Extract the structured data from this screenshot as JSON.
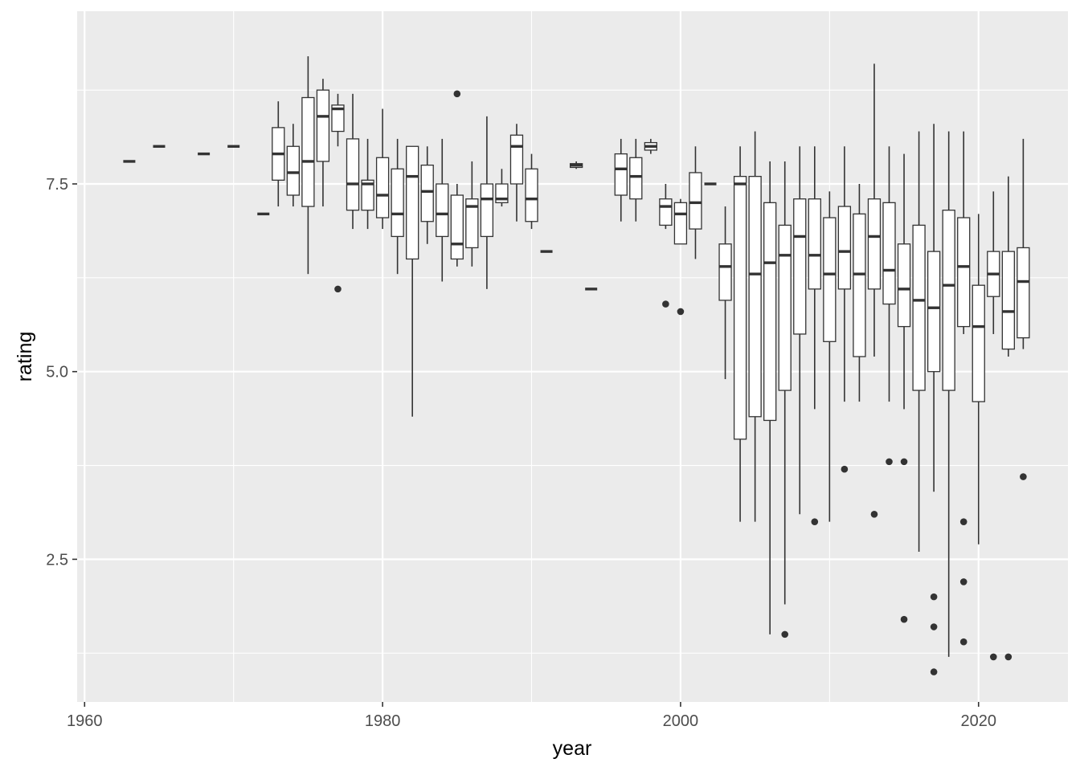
{
  "chart_data": {
    "type": "boxplot",
    "xlabel": "year",
    "ylabel": "rating",
    "xlim": [
      1959.5,
      2026
    ],
    "ylim": [
      0.6,
      9.8
    ],
    "x_ticks": [
      1960,
      1980,
      2000,
      2020
    ],
    "x_tick_labels": [
      "1960",
      "1980",
      "2000",
      "2020"
    ],
    "y_ticks": [
      2.5,
      5.0,
      7.5
    ],
    "y_tick_labels": [
      "2.5",
      "5.0",
      "7.5"
    ],
    "grid": true,
    "background": "#ebebeb",
    "grid_color": "#ffffff",
    "box_fill": "#ffffff",
    "line_color": "#333333",
    "boxes": [
      {
        "year": 1963,
        "min": 7.8,
        "q1": 7.8,
        "median": 7.8,
        "q3": 7.8,
        "max": 7.8
      },
      {
        "year": 1965,
        "min": 8.0,
        "q1": 8.0,
        "median": 8.0,
        "q3": 8.0,
        "max": 8.0
      },
      {
        "year": 1968,
        "min": 7.9,
        "q1": 7.9,
        "median": 7.9,
        "q3": 7.9,
        "max": 7.9
      },
      {
        "year": 1970,
        "min": 8.0,
        "q1": 8.0,
        "median": 8.0,
        "q3": 8.0,
        "max": 8.0
      },
      {
        "year": 1972,
        "min": 7.1,
        "q1": 7.1,
        "median": 7.1,
        "q3": 7.1,
        "max": 7.1
      },
      {
        "year": 1973,
        "min": 7.2,
        "q1": 7.55,
        "median": 7.9,
        "q3": 8.25,
        "max": 8.6
      },
      {
        "year": 1974,
        "min": 7.2,
        "q1": 7.35,
        "median": 7.65,
        "q3": 8.0,
        "max": 8.3
      },
      {
        "year": 1975,
        "min": 6.3,
        "q1": 7.2,
        "median": 7.8,
        "q3": 8.65,
        "max": 9.2
      },
      {
        "year": 1976,
        "min": 7.2,
        "q1": 7.8,
        "median": 8.4,
        "q3": 8.75,
        "max": 8.9
      },
      {
        "year": 1977,
        "min": 8.0,
        "q1": 8.2,
        "median": 8.5,
        "q3": 8.55,
        "max": 8.7,
        "outliers": [
          6.1
        ]
      },
      {
        "year": 1978,
        "min": 6.9,
        "q1": 7.15,
        "median": 7.5,
        "q3": 8.1,
        "max": 8.7
      },
      {
        "year": 1979,
        "min": 6.9,
        "q1": 7.15,
        "median": 7.5,
        "q3": 7.55,
        "max": 8.1
      },
      {
        "year": 1980,
        "min": 6.9,
        "q1": 7.05,
        "median": 7.35,
        "q3": 7.85,
        "max": 8.5
      },
      {
        "year": 1981,
        "min": 6.3,
        "q1": 6.8,
        "median": 7.1,
        "q3": 7.7,
        "max": 8.1
      },
      {
        "year": 1982,
        "min": 4.4,
        "q1": 6.5,
        "median": 7.6,
        "q3": 8.0,
        "max": 8.0
      },
      {
        "year": 1983,
        "min": 6.7,
        "q1": 7.0,
        "median": 7.4,
        "q3": 7.75,
        "max": 8.0
      },
      {
        "year": 1984,
        "min": 6.2,
        "q1": 6.8,
        "median": 7.1,
        "q3": 7.5,
        "max": 8.1
      },
      {
        "year": 1985,
        "min": 6.4,
        "q1": 6.5,
        "median": 6.7,
        "q3": 7.35,
        "max": 7.5,
        "outliers": [
          8.7
        ]
      },
      {
        "year": 1986,
        "min": 6.4,
        "q1": 6.65,
        "median": 7.2,
        "q3": 7.3,
        "max": 7.8
      },
      {
        "year": 1987,
        "min": 6.1,
        "q1": 6.8,
        "median": 7.3,
        "q3": 7.5,
        "max": 8.4
      },
      {
        "year": 1988,
        "min": 7.2,
        "q1": 7.25,
        "median": 7.3,
        "q3": 7.5,
        "max": 7.7
      },
      {
        "year": 1989,
        "min": 7.0,
        "q1": 7.5,
        "median": 8.0,
        "q3": 8.15,
        "max": 8.3
      },
      {
        "year": 1990,
        "min": 6.9,
        "q1": 7.0,
        "median": 7.3,
        "q3": 7.7,
        "max": 7.9
      },
      {
        "year": 1991,
        "min": 6.6,
        "q1": 6.6,
        "median": 6.6,
        "q3": 6.6,
        "max": 6.6
      },
      {
        "year": 1993,
        "min": 7.7,
        "q1": 7.72,
        "median": 7.75,
        "q3": 7.77,
        "max": 7.8
      },
      {
        "year": 1994,
        "min": 6.1,
        "q1": 6.1,
        "median": 6.1,
        "q3": 6.1,
        "max": 6.1
      },
      {
        "year": 1996,
        "min": 7.0,
        "q1": 7.35,
        "median": 7.7,
        "q3": 7.9,
        "max": 8.1
      },
      {
        "year": 1997,
        "min": 7.0,
        "q1": 7.3,
        "median": 7.6,
        "q3": 7.85,
        "max": 8.1
      },
      {
        "year": 1998,
        "min": 7.9,
        "q1": 7.95,
        "median": 8.0,
        "q3": 8.05,
        "max": 8.1
      },
      {
        "year": 1999,
        "min": 6.9,
        "q1": 6.95,
        "median": 7.2,
        "q3": 7.3,
        "max": 7.5,
        "outliers": [
          5.9
        ]
      },
      {
        "year": 2000,
        "min": 6.7,
        "q1": 6.7,
        "median": 7.1,
        "q3": 7.25,
        "max": 7.3,
        "outliers": [
          5.8
        ]
      },
      {
        "year": 2001,
        "min": 6.5,
        "q1": 6.9,
        "median": 7.25,
        "q3": 7.65,
        "max": 8.0
      },
      {
        "year": 2002,
        "min": 7.5,
        "q1": 7.5,
        "median": 7.5,
        "q3": 7.5,
        "max": 7.5
      },
      {
        "year": 2003,
        "min": 4.9,
        "q1": 5.95,
        "median": 6.4,
        "q3": 6.7,
        "max": 7.2
      },
      {
        "year": 2004,
        "min": 3.0,
        "q1": 4.1,
        "median": 7.5,
        "q3": 7.6,
        "max": 8.0
      },
      {
        "year": 2005,
        "min": 3.0,
        "q1": 4.4,
        "median": 6.3,
        "q3": 7.6,
        "max": 8.2
      },
      {
        "year": 2006,
        "min": 1.5,
        "q1": 4.35,
        "median": 6.45,
        "q3": 7.25,
        "max": 7.8
      },
      {
        "year": 2007,
        "min": 1.9,
        "q1": 4.75,
        "median": 6.55,
        "q3": 6.95,
        "max": 7.8,
        "outliers": [
          1.5
        ]
      },
      {
        "year": 2008,
        "min": 3.1,
        "q1": 5.5,
        "median": 6.8,
        "q3": 7.3,
        "max": 8.0
      },
      {
        "year": 2009,
        "min": 4.5,
        "q1": 6.1,
        "median": 6.55,
        "q3": 7.3,
        "max": 8.0,
        "outliers": [
          3.0
        ]
      },
      {
        "year": 2010,
        "min": 3.0,
        "q1": 5.4,
        "median": 6.3,
        "q3": 7.05,
        "max": 7.4
      },
      {
        "year": 2011,
        "min": 4.6,
        "q1": 6.1,
        "median": 6.6,
        "q3": 7.2,
        "max": 8.0,
        "outliers": [
          3.7
        ]
      },
      {
        "year": 2012,
        "min": 4.6,
        "q1": 5.2,
        "median": 6.3,
        "q3": 7.1,
        "max": 7.5
      },
      {
        "year": 2013,
        "min": 5.2,
        "q1": 6.1,
        "median": 6.8,
        "q3": 7.3,
        "max": 9.1,
        "outliers": [
          3.1
        ]
      },
      {
        "year": 2014,
        "min": 4.6,
        "q1": 5.9,
        "median": 6.35,
        "q3": 7.25,
        "max": 8.0,
        "outliers": [
          3.8
        ]
      },
      {
        "year": 2015,
        "min": 4.5,
        "q1": 5.6,
        "median": 6.1,
        "q3": 6.7,
        "max": 7.9,
        "outliers": [
          3.8,
          1.7
        ]
      },
      {
        "year": 2016,
        "min": 2.6,
        "q1": 4.75,
        "median": 5.95,
        "q3": 6.95,
        "max": 8.2
      },
      {
        "year": 2017,
        "min": 3.4,
        "q1": 5.0,
        "median": 5.85,
        "q3": 6.6,
        "max": 8.3,
        "outliers": [
          2.0,
          1.6,
          1.0
        ]
      },
      {
        "year": 2018,
        "min": 1.2,
        "q1": 4.75,
        "median": 6.15,
        "q3": 7.15,
        "max": 8.2
      },
      {
        "year": 2019,
        "min": 5.5,
        "q1": 5.6,
        "median": 6.4,
        "q3": 7.05,
        "max": 8.2,
        "outliers": [
          3.0,
          2.2,
          1.4
        ]
      },
      {
        "year": 2020,
        "min": 2.7,
        "q1": 4.6,
        "median": 5.6,
        "q3": 6.15,
        "max": 7.1
      },
      {
        "year": 2021,
        "min": 5.5,
        "q1": 6.0,
        "median": 6.3,
        "q3": 6.6,
        "max": 7.4,
        "outliers": [
          1.2
        ]
      },
      {
        "year": 2022,
        "min": 5.2,
        "q1": 5.3,
        "median": 5.8,
        "q3": 6.6,
        "max": 7.6,
        "outliers": [
          1.2
        ]
      },
      {
        "year": 2023,
        "min": 5.3,
        "q1": 5.45,
        "median": 6.2,
        "q3": 6.65,
        "max": 8.1,
        "outliers": [
          3.6
        ]
      }
    ]
  }
}
